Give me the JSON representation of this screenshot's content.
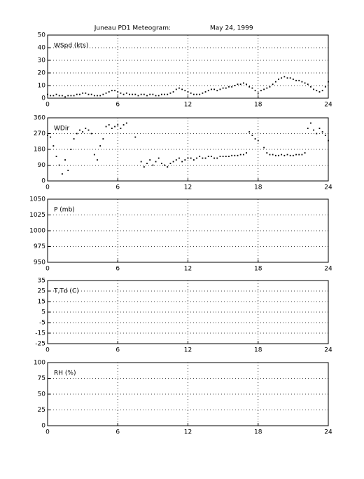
{
  "title": "Juneau PD1 Meteogram:",
  "date": "May 24, 1999",
  "chart_data": [
    {
      "type": "scatter",
      "y_label": "WSpd (kts)",
      "color": "#000000",
      "grid": true,
      "xlim": [
        0,
        24
      ],
      "xticks": [
        0,
        6,
        12,
        18,
        24
      ],
      "ylim": [
        0,
        50
      ],
      "yticks": [
        0,
        10,
        20,
        30,
        40,
        50
      ],
      "x": [
        0,
        0.25,
        0.5,
        0.75,
        1,
        1.25,
        1.5,
        1.75,
        2,
        2.25,
        2.5,
        2.75,
        3,
        3.25,
        3.5,
        3.75,
        4,
        4.25,
        4.5,
        4.75,
        5,
        5.25,
        5.5,
        5.75,
        6,
        6.25,
        6.5,
        6.75,
        7,
        7.25,
        7.5,
        7.75,
        8,
        8.25,
        8.5,
        8.75,
        9,
        9.25,
        9.5,
        9.75,
        10,
        10.25,
        10.5,
        10.75,
        11,
        11.25,
        11.5,
        11.75,
        12,
        12.25,
        12.5,
        12.75,
        13,
        13.25,
        13.5,
        13.75,
        14,
        14.25,
        14.5,
        14.75,
        15,
        15.25,
        15.5,
        15.75,
        16,
        16.25,
        16.5,
        16.75,
        17,
        17.25,
        17.5,
        17.75,
        18,
        18.25,
        18.5,
        18.75,
        19,
        19.25,
        19.5,
        19.75,
        20,
        20.25,
        20.5,
        20.75,
        21,
        21.25,
        21.5,
        21.75,
        22,
        22.25,
        22.5,
        22.75,
        23,
        23.25,
        23.5,
        23.75,
        24
      ],
      "values": [
        3,
        2,
        2,
        3,
        2,
        2,
        1,
        2,
        2,
        2,
        3,
        3,
        4,
        4,
        3,
        3,
        2,
        2,
        2,
        3,
        4,
        5,
        6,
        6,
        5,
        4,
        3,
        4,
        3,
        3,
        3,
        2,
        3,
        3,
        2,
        3,
        3,
        2,
        2,
        3,
        3,
        3,
        4,
        5,
        7,
        8,
        7,
        6,
        5,
        4,
        3,
        3,
        3,
        4,
        5,
        6,
        7,
        7,
        6,
        7,
        8,
        8,
        9,
        9,
        10,
        11,
        11,
        12,
        11,
        9,
        8,
        6,
        4,
        6,
        7,
        8,
        9,
        11,
        13,
        15,
        16,
        17,
        16,
        16,
        15,
        14,
        14,
        13,
        12,
        11,
        9,
        7,
        6,
        5,
        6,
        9,
        13
      ]
    },
    {
      "type": "scatter",
      "y_label": "WDir",
      "color": "#000000",
      "grid": true,
      "xlim": [
        0,
        24
      ],
      "xticks": [
        0,
        6,
        12,
        18,
        24
      ],
      "ylim": [
        0,
        360
      ],
      "yticks": [
        0,
        90,
        180,
        270,
        360
      ],
      "x": [
        0,
        0.25,
        0.5,
        0.75,
        1,
        1.25,
        1.5,
        1.75,
        2,
        2.25,
        2.5,
        2.75,
        3,
        3.25,
        3.5,
        3.75,
        4,
        4.25,
        4.5,
        4.75,
        5,
        5.25,
        5.5,
        5.75,
        6,
        6.25,
        6.5,
        6.75,
        7,
        7.25,
        7.5,
        7.75,
        8,
        8.25,
        8.5,
        8.75,
        9,
        9.25,
        9.5,
        9.75,
        10,
        10.25,
        10.5,
        10.75,
        11,
        11.25,
        11.5,
        11.75,
        12,
        12.25,
        12.5,
        12.75,
        13,
        13.25,
        13.5,
        13.75,
        14,
        14.25,
        14.5,
        14.75,
        15,
        15.25,
        15.5,
        15.75,
        16,
        16.25,
        16.5,
        16.75,
        17,
        17.25,
        17.5,
        17.75,
        18,
        18.25,
        18.5,
        18.75,
        19,
        19.25,
        19.5,
        19.75,
        20,
        20.25,
        20.5,
        20.75,
        21,
        21.25,
        21.5,
        21.75,
        22,
        22.25,
        22.5,
        22.75,
        23,
        23.25,
        23.5,
        23.75,
        24
      ],
      "values": [
        260,
        250,
        200,
        140,
        90,
        40,
        120,
        60,
        180,
        240,
        270,
        290,
        280,
        300,
        290,
        270,
        150,
        120,
        200,
        240,
        310,
        320,
        300,
        310,
        320,
        300,
        320,
        330,
        null,
        null,
        250,
        null,
        110,
        80,
        100,
        120,
        90,
        110,
        130,
        100,
        90,
        80,
        100,
        110,
        120,
        130,
        110,
        120,
        130,
        130,
        120,
        130,
        140,
        130,
        130,
        140,
        140,
        130,
        130,
        140,
        140,
        140,
        140,
        145,
        145,
        145,
        150,
        150,
        160,
        280,
        260,
        240,
        230,
        null,
        190,
        160,
        150,
        150,
        145,
        145,
        150,
        145,
        150,
        145,
        145,
        150,
        150,
        150,
        160,
        300,
        330,
        290,
        270,
        300,
        280,
        260,
        230
      ]
    },
    {
      "type": "scatter",
      "y_label": "P (mb)",
      "grid": true,
      "xlim": [
        0,
        24
      ],
      "xticks": [
        0,
        6,
        12,
        18,
        24
      ],
      "ylim": [
        950,
        1050
      ],
      "yticks": [
        950,
        975,
        1000,
        1025,
        1050
      ]
    },
    {
      "type": "scatter",
      "y_label": "T,Td (C)",
      "grid": true,
      "xlim": [
        0,
        24
      ],
      "xticks": [
        0,
        6,
        12,
        18,
        24
      ],
      "ylim": [
        -25,
        35
      ],
      "yticks": [
        -25,
        -15,
        -5,
        5,
        15,
        25,
        35
      ]
    },
    {
      "type": "scatter",
      "y_label": "RH (%)",
      "grid": true,
      "xlim": [
        0,
        24
      ],
      "xticks": [
        0,
        6,
        12,
        18,
        24
      ],
      "ylim": [
        0,
        100
      ],
      "yticks": [
        0,
        25,
        50,
        75,
        100
      ]
    }
  ]
}
